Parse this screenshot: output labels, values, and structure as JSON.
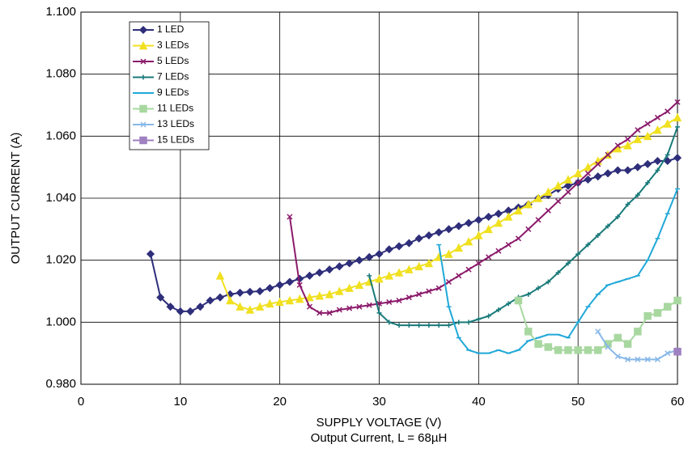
{
  "chart_data": {
    "type": "line",
    "subtitle": "Output Current, L = 68µH",
    "x_label": "SUPPLY VOLTAGE (V)",
    "y_label": "OUTPUT CURRENT (A)",
    "xlim": [
      0,
      60
    ],
    "xticks": [
      0,
      10,
      20,
      30,
      40,
      50,
      60
    ],
    "ylim": [
      0.98,
      1.1
    ],
    "yticks": [
      {
        "value": 0.98,
        "label": "0.980"
      },
      {
        "value": 1.0,
        "label": "1.000"
      },
      {
        "value": 1.02,
        "label": "1.020"
      },
      {
        "value": 1.04,
        "label": "1.040"
      },
      {
        "value": 1.06,
        "label": "1.060"
      },
      {
        "value": 1.08,
        "label": "1.080"
      },
      {
        "value": 1.1,
        "label": "1.100"
      }
    ],
    "grid": true,
    "legend": "upper left",
    "series": [
      {
        "name": "1 LED",
        "color": "#2e2e7a",
        "marker": "diamond",
        "x": [
          7,
          8,
          9,
          10,
          11,
          12,
          13,
          14,
          15,
          16,
          17,
          18,
          19,
          20,
          21,
          22,
          23,
          24,
          25,
          26,
          27,
          28,
          29,
          30,
          31,
          32,
          33,
          34,
          35,
          36,
          37,
          38,
          39,
          40,
          41,
          42,
          43,
          44,
          45,
          46,
          47,
          48,
          49,
          50,
          51,
          52,
          53,
          54,
          55,
          56,
          57,
          58,
          59,
          60
        ],
        "values": [
          1.022,
          1.008,
          1.005,
          1.0035,
          1.0035,
          1.005,
          1.007,
          1.008,
          1.009,
          1.0095,
          1.0098,
          1.01,
          1.011,
          1.012,
          1.013,
          1.014,
          1.015,
          1.016,
          1.017,
          1.018,
          1.019,
          1.02,
          1.021,
          1.022,
          1.0235,
          1.0245,
          1.0255,
          1.027,
          1.028,
          1.029,
          1.03,
          1.031,
          1.032,
          1.033,
          1.034,
          1.035,
          1.036,
          1.037,
          1.038,
          1.04,
          1.041,
          1.043,
          1.044,
          1.045,
          1.046,
          1.047,
          1.048,
          1.049,
          1.049,
          1.05,
          1.051,
          1.052,
          1.052,
          1.053
        ]
      },
      {
        "name": "3 LEDs",
        "color": "#f0e020",
        "marker": "triangle",
        "x": [
          14,
          15,
          16,
          17,
          18,
          19,
          20,
          21,
          22,
          23,
          24,
          25,
          26,
          27,
          28,
          29,
          30,
          31,
          32,
          33,
          34,
          35,
          36,
          37,
          38,
          39,
          40,
          41,
          42,
          43,
          44,
          45,
          46,
          47,
          48,
          49,
          50,
          51,
          52,
          53,
          54,
          55,
          56,
          57,
          58,
          59,
          60
        ],
        "values": [
          1.015,
          1.007,
          1.005,
          1.004,
          1.005,
          1.006,
          1.0065,
          1.007,
          1.0075,
          1.008,
          1.0085,
          1.009,
          1.01,
          1.011,
          1.012,
          1.013,
          1.014,
          1.015,
          1.016,
          1.017,
          1.018,
          1.019,
          1.021,
          1.022,
          1.024,
          1.026,
          1.028,
          1.03,
          1.032,
          1.034,
          1.036,
          1.038,
          1.04,
          1.042,
          1.044,
          1.046,
          1.048,
          1.05,
          1.052,
          1.054,
          1.056,
          1.057,
          1.059,
          1.06,
          1.062,
          1.064,
          1.066
        ]
      },
      {
        "name": "5 LEDs",
        "color": "#8b1a6b",
        "marker": "x",
        "x": [
          21,
          22,
          23,
          24,
          25,
          26,
          27,
          28,
          29,
          30,
          31,
          32,
          33,
          34,
          35,
          36,
          37,
          38,
          39,
          40,
          41,
          42,
          43,
          44,
          45,
          46,
          47,
          48,
          49,
          50,
          51,
          52,
          53,
          54,
          55,
          56,
          57,
          58,
          59,
          60
        ],
        "values": [
          1.034,
          1.012,
          1.005,
          1.003,
          1.003,
          1.004,
          1.0045,
          1.005,
          1.0055,
          1.006,
          1.0065,
          1.007,
          1.008,
          1.009,
          1.01,
          1.011,
          1.013,
          1.015,
          1.017,
          1.019,
          1.021,
          1.023,
          1.025,
          1.027,
          1.03,
          1.033,
          1.036,
          1.039,
          1.042,
          1.045,
          1.048,
          1.051,
          1.054,
          1.057,
          1.059,
          1.062,
          1.064,
          1.066,
          1.068,
          1.071
        ]
      },
      {
        "name": "7 LEDs",
        "color": "#1a7a7a",
        "marker": "plus",
        "x": [
          29,
          30,
          31,
          32,
          33,
          34,
          35,
          36,
          37,
          38,
          39,
          40,
          41,
          42,
          43,
          44,
          45,
          46,
          47,
          48,
          49,
          50,
          51,
          52,
          53,
          54,
          55,
          56,
          57,
          58,
          59,
          60
        ],
        "values": [
          1.015,
          1.003,
          1.0,
          0.999,
          0.999,
          0.999,
          0.999,
          0.999,
          0.999,
          1.0,
          1.0,
          1.001,
          1.002,
          1.004,
          1.006,
          1.008,
          1.009,
          1.011,
          1.013,
          1.016,
          1.019,
          1.022,
          1.025,
          1.028,
          1.031,
          1.034,
          1.038,
          1.041,
          1.045,
          1.049,
          1.054,
          1.063
        ]
      },
      {
        "name": "9 LEDs",
        "color": "#20a8d8",
        "marker": "dash",
        "x": [
          36,
          37,
          38,
          39,
          40,
          41,
          42,
          43,
          44,
          45,
          46,
          47,
          48,
          49,
          50,
          51,
          52,
          53,
          54,
          55,
          56,
          57,
          58,
          59,
          60
        ],
        "values": [
          1.025,
          1.005,
          0.995,
          0.991,
          0.99,
          0.99,
          0.991,
          0.99,
          0.991,
          0.994,
          0.995,
          0.996,
          0.996,
          0.995,
          1.0,
          1.005,
          1.009,
          1.012,
          1.013,
          1.014,
          1.015,
          1.02,
          1.027,
          1.035,
          1.043
        ]
      },
      {
        "name": "11 LEDs",
        "color": "#a8d8a0",
        "marker": "square",
        "x": [
          44,
          45,
          46,
          47,
          48,
          49,
          50,
          51,
          52,
          53,
          54,
          55,
          56,
          57,
          58,
          59,
          60
        ],
        "values": [
          1.007,
          0.997,
          0.993,
          0.992,
          0.991,
          0.991,
          0.991,
          0.991,
          0.991,
          0.993,
          0.995,
          0.993,
          0.997,
          1.002,
          1.003,
          1.005,
          1.007
        ]
      },
      {
        "name": "13 LEDs",
        "color": "#88b8e8",
        "marker": "x",
        "x": [
          52,
          53,
          54,
          55,
          56,
          57,
          58,
          59,
          60
        ],
        "values": [
          0.997,
          0.992,
          0.989,
          0.988,
          0.988,
          0.988,
          0.988,
          0.99,
          0.991
        ]
      },
      {
        "name": "15 LEDs",
        "color": "#9f80c0",
        "marker": "square",
        "x": [
          60
        ],
        "values": [
          0.9905
        ]
      }
    ]
  }
}
